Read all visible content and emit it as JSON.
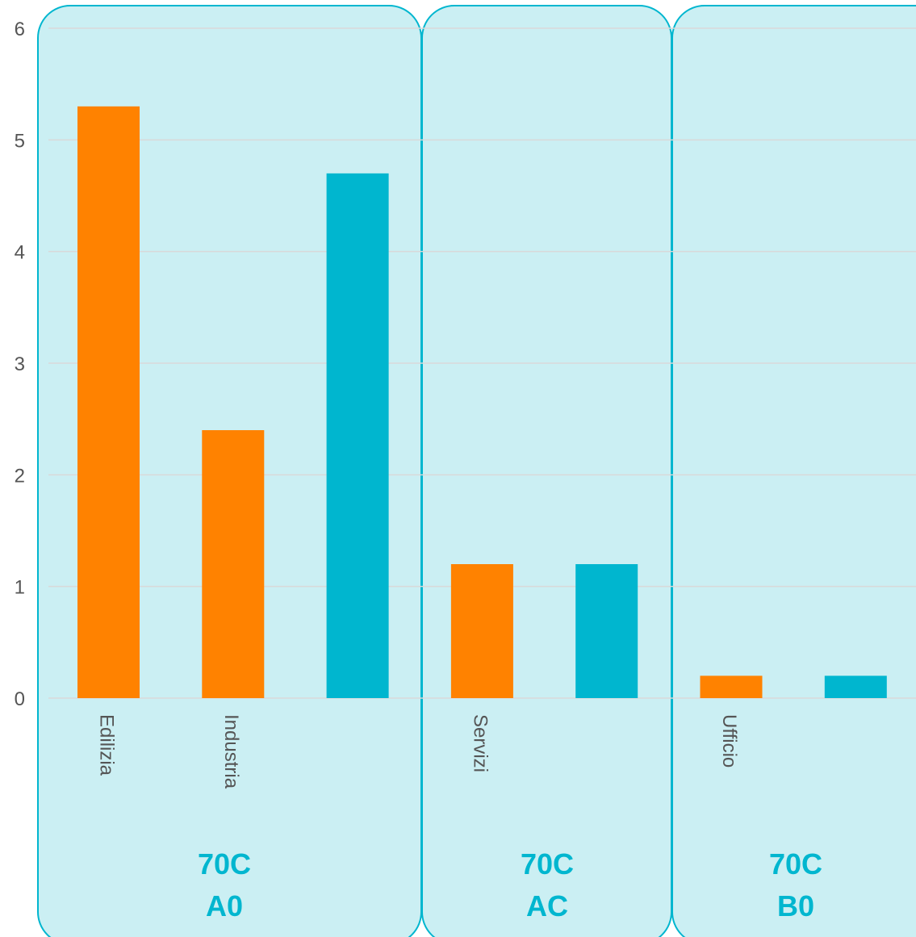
{
  "chart_data": {
    "type": "bar",
    "ylim": [
      0,
      6
    ],
    "y_ticks": [
      "0",
      "1",
      "2",
      "3",
      "4",
      "5",
      "6"
    ],
    "grid": true,
    "groups": [
      {
        "label_line1": "70C",
        "label_line2": "A0",
        "bars": [
          {
            "category": "Edilizia",
            "value": 5.3,
            "color": "#ff8200"
          },
          {
            "category": "Industria",
            "value": 2.4,
            "color": "#ff8200"
          },
          {
            "category": "",
            "value": 4.7,
            "color": "#00b6cf"
          }
        ]
      },
      {
        "label_line1": "70C",
        "label_line2": "AC",
        "bars": [
          {
            "category": "Servizi",
            "value": 1.2,
            "color": "#ff8200"
          },
          {
            "category": "",
            "value": 1.2,
            "color": "#00b6cf"
          }
        ]
      },
      {
        "label_line1": "70C",
        "label_line2": "B0",
        "bars": [
          {
            "category": "Ufficio",
            "value": 0.2,
            "color": "#ff8200"
          },
          {
            "category": "",
            "value": 0.2,
            "color": "#00b6cf"
          }
        ]
      }
    ],
    "colors": {
      "orange": "#ff8200",
      "teal": "#00b6cf",
      "group_fill": "#cbeff3",
      "group_stroke": "#00b6cf",
      "group_label": "#00b6cf",
      "grid": "#d9d9d9",
      "axis_text": "#555555"
    }
  }
}
